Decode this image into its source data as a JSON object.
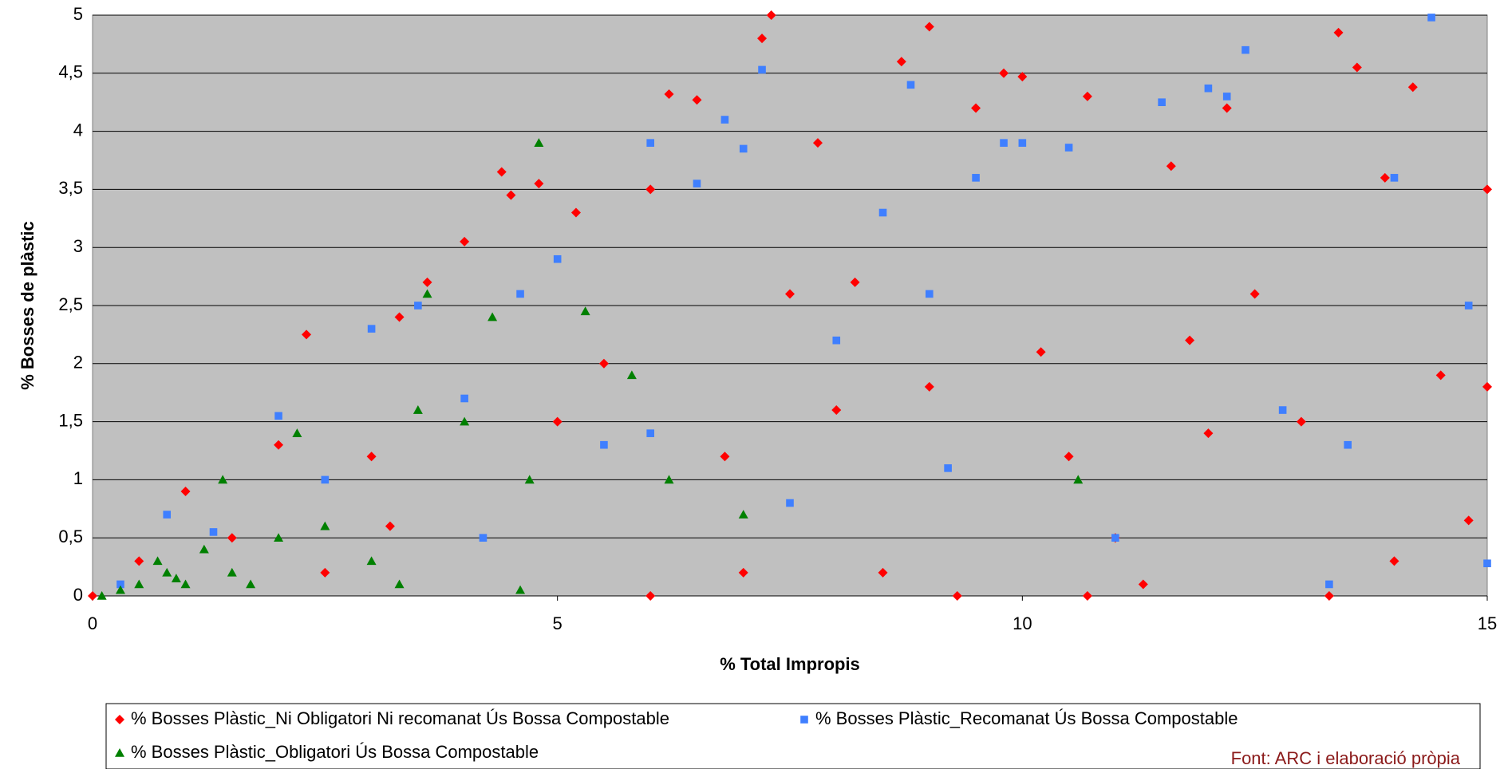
{
  "chart_data": {
    "type": "scatter",
    "x_label": "% Total Impropis",
    "y_label": "% Bosses de plàstic",
    "source": "Font: ARC i elaboració pròpia",
    "xlim": [
      0,
      15
    ],
    "ylim": [
      0,
      5
    ],
    "xticks": [
      0,
      5,
      10,
      15
    ],
    "yticks": [
      0,
      {
        "value": 0.5,
        "label": "0,5"
      },
      1,
      {
        "value": 1.5,
        "label": "1,5"
      },
      2,
      {
        "value": 2.5,
        "label": "2,5"
      },
      3,
      {
        "value": 3.5,
        "label": "3,5"
      },
      4,
      {
        "value": 4.5,
        "label": "4,5"
      },
      5
    ],
    "grid": true,
    "background": "#c0c0c0",
    "series": [
      {
        "name": "% Bosses Plàstic_Ni Obligatori Ni recomanat Ús Bossa Compostable",
        "color": "#ff0000",
        "marker": "diamond",
        "x": [
          0,
          0.5,
          1,
          1.5,
          2,
          2.3,
          2.5,
          3,
          3.3,
          3.6,
          4,
          4.4,
          4.5,
          4.8,
          5,
          5.2,
          5.5,
          6,
          6.2,
          6.5,
          6.8,
          7,
          7.2,
          7.3,
          7.5,
          7.8,
          8,
          8.5,
          8.7,
          9,
          9,
          9.3,
          9.5,
          9.8,
          10,
          10.2,
          10.5,
          10.7,
          11,
          11.3,
          11.6,
          12,
          12.2,
          12.5,
          13,
          13.3,
          13.4,
          13.6,
          13.9,
          14.2,
          14.5,
          14.8,
          15,
          15,
          14,
          6,
          10.7,
          3.2,
          8.2,
          11.8
        ],
        "y": [
          0,
          0.3,
          0.9,
          0.5,
          1.3,
          2.25,
          0.2,
          1.2,
          2.4,
          2.7,
          3.05,
          3.65,
          3.45,
          3.55,
          1.5,
          3.3,
          2,
          3.5,
          4.32,
          4.27,
          1.2,
          0.2,
          4.8,
          5,
          2.6,
          3.9,
          1.6,
          0.2,
          4.6,
          4.9,
          1.8,
          0,
          4.2,
          4.5,
          4.47,
          2.1,
          1.2,
          4.3,
          0.5,
          0.1,
          3.7,
          1.4,
          4.2,
          2.6,
          1.5,
          0,
          4.85,
          4.55,
          3.6,
          4.38,
          1.9,
          0.65,
          3.5,
          1.8,
          0.3,
          0,
          0,
          0.6,
          2.7,
          2.2
        ]
      },
      {
        "name": "% Bosses Plàstic_Recomanat Ús Bossa Compostable",
        "color": "#3f7fff",
        "marker": "square",
        "x": [
          0.3,
          0.8,
          1.3,
          2,
          2.5,
          3,
          3.5,
          4,
          4.6,
          5,
          5.5,
          6,
          6.5,
          6.8,
          7,
          7.2,
          7.5,
          8,
          8.5,
          8.8,
          9,
          9.5,
          9.8,
          10,
          10.5,
          11,
          11.5,
          12,
          12.2,
          12.4,
          12.8,
          13.3,
          13.5,
          14,
          14.4,
          14.8,
          15,
          6,
          9.2,
          4.2
        ],
        "y": [
          0.1,
          0.7,
          0.55,
          1.55,
          1,
          2.3,
          2.5,
          1.7,
          2.6,
          2.9,
          1.3,
          3.9,
          3.55,
          4.1,
          3.85,
          4.53,
          0.8,
          2.2,
          3.3,
          4.4,
          2.6,
          3.6,
          3.9,
          3.9,
          3.86,
          0.5,
          4.25,
          4.37,
          4.3,
          4.7,
          1.6,
          0.1,
          1.3,
          3.6,
          4.98,
          2.5,
          0.28,
          1.4,
          1.1,
          0.5
        ]
      },
      {
        "name": "% Bosses Plàstic_Obligatori Ús Bossa Compostable",
        "color": "#008000",
        "marker": "triangle",
        "x": [
          0.1,
          0.3,
          0.5,
          0.7,
          0.8,
          0.9,
          1,
          1.2,
          1.4,
          1.5,
          1.7,
          2,
          2.2,
          2.5,
          3,
          3.3,
          3.5,
          3.6,
          4,
          4.3,
          4.6,
          4.7,
          4.8,
          5.3,
          5.8,
          6.2,
          7,
          10.6
        ],
        "y": [
          0,
          0.05,
          0.1,
          0.3,
          0.2,
          0.15,
          0.1,
          0.4,
          1,
          0.2,
          0.1,
          0.5,
          1.4,
          0.6,
          0.3,
          0.1,
          1.6,
          2.6,
          1.5,
          2.4,
          0.05,
          1,
          3.9,
          2.45,
          1.9,
          1,
          0.7,
          1
        ]
      }
    ]
  }
}
